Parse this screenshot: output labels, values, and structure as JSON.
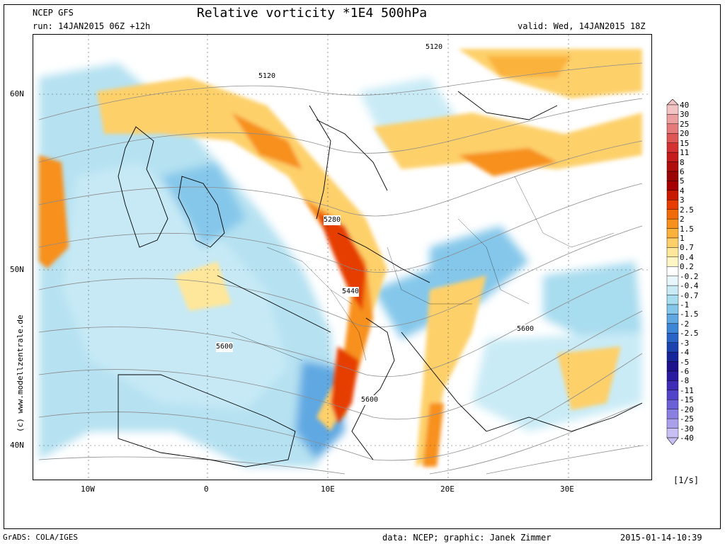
{
  "header": {
    "model": "NCEP GFS",
    "run": "run: 14JAN2015 06Z +12h",
    "title": "Relative vorticity *1E4 500hPa",
    "valid": "valid: Wed, 14JAN2015 18Z"
  },
  "watermark": "(c) www.modellzentrale.de",
  "axes": {
    "lat_labels": [
      "60N",
      "50N",
      "40N"
    ],
    "lon_labels": [
      "10W",
      "0",
      "10E",
      "20E",
      "30E"
    ]
  },
  "contour_labels": [
    "5120",
    "5120",
    "5280",
    "5440",
    "5600",
    "5600",
    "5600"
  ],
  "legend": {
    "labels": [
      "40",
      "30",
      "25",
      "20",
      "15",
      "11",
      "8",
      "6",
      "5",
      "4",
      "3",
      "2.5",
      "2",
      "1.5",
      "1",
      "0.7",
      "0.4",
      "0.2",
      "-0.2",
      "-0.4",
      "-0.7",
      "-1",
      "-1.5",
      "-2",
      "-2.5",
      "-3",
      "-4",
      "-5",
      "-6",
      "-8",
      "-11",
      "-15",
      "-20",
      "-25",
      "-30",
      "-40"
    ],
    "colors": [
      "#f3c4c4",
      "#ec9f9f",
      "#e57a7a",
      "#de5656",
      "#d43232",
      "#c41c1c",
      "#b00d0d",
      "#9a0606",
      "#a50000",
      "#c81a00",
      "#e63c00",
      "#f26b0a",
      "#f7901c",
      "#fbb23c",
      "#fdd06a",
      "#fee79a",
      "#fff6c6",
      "#ffffff",
      "#e6f6fb",
      "#c9ebf6",
      "#a8dcef",
      "#85c7ea",
      "#5fa8e2",
      "#3e86d6",
      "#2a64c6",
      "#1c42b0",
      "#16249a",
      "#1d128c",
      "#2a1aa0",
      "#3c2cb6",
      "#5244c8",
      "#6c60d6",
      "#8a80e2",
      "#a9a0ec",
      "#c8c0f4"
    ],
    "unit": "[1/s]"
  },
  "footer": {
    "left": "GrADS: COLA/IGES",
    "credit": "data: NCEP; graphic: Janek Zimmer",
    "timestamp": "2015-01-14-10:39"
  }
}
